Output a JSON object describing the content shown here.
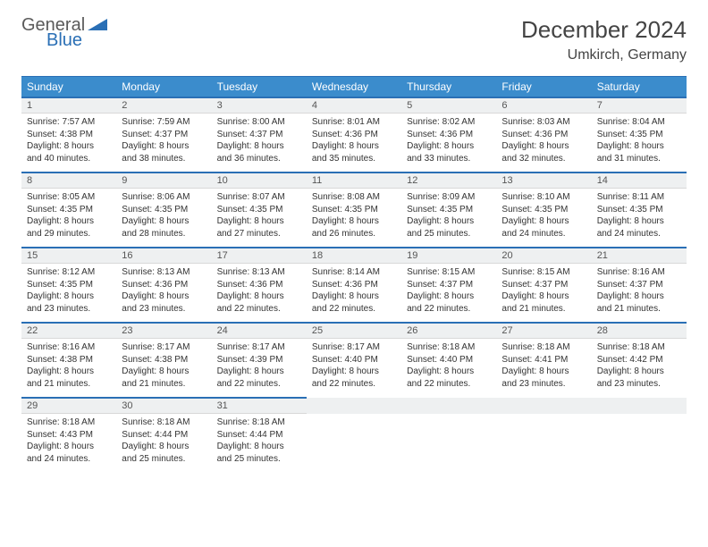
{
  "brand": {
    "part1": "General",
    "part2": "Blue"
  },
  "title": "December 2024",
  "location": "Umkirch, Germany",
  "colors": {
    "header_bg": "#3b8ccc",
    "header_border": "#2a6fb5",
    "daynum_bg": "#eef0f1",
    "text": "#333333",
    "brand_gray": "#5a5a5a",
    "brand_blue": "#2a6fb5"
  },
  "weekdays": [
    "Sunday",
    "Monday",
    "Tuesday",
    "Wednesday",
    "Thursday",
    "Friday",
    "Saturday"
  ],
  "weeks": [
    {
      "nums": [
        "1",
        "2",
        "3",
        "4",
        "5",
        "6",
        "7"
      ],
      "details": [
        {
          "sunrise": "Sunrise: 7:57 AM",
          "sunset": "Sunset: 4:38 PM",
          "day1": "Daylight: 8 hours",
          "day2": "and 40 minutes."
        },
        {
          "sunrise": "Sunrise: 7:59 AM",
          "sunset": "Sunset: 4:37 PM",
          "day1": "Daylight: 8 hours",
          "day2": "and 38 minutes."
        },
        {
          "sunrise": "Sunrise: 8:00 AM",
          "sunset": "Sunset: 4:37 PM",
          "day1": "Daylight: 8 hours",
          "day2": "and 36 minutes."
        },
        {
          "sunrise": "Sunrise: 8:01 AM",
          "sunset": "Sunset: 4:36 PM",
          "day1": "Daylight: 8 hours",
          "day2": "and 35 minutes."
        },
        {
          "sunrise": "Sunrise: 8:02 AM",
          "sunset": "Sunset: 4:36 PM",
          "day1": "Daylight: 8 hours",
          "day2": "and 33 minutes."
        },
        {
          "sunrise": "Sunrise: 8:03 AM",
          "sunset": "Sunset: 4:36 PM",
          "day1": "Daylight: 8 hours",
          "day2": "and 32 minutes."
        },
        {
          "sunrise": "Sunrise: 8:04 AM",
          "sunset": "Sunset: 4:35 PM",
          "day1": "Daylight: 8 hours",
          "day2": "and 31 minutes."
        }
      ]
    },
    {
      "nums": [
        "8",
        "9",
        "10",
        "11",
        "12",
        "13",
        "14"
      ],
      "details": [
        {
          "sunrise": "Sunrise: 8:05 AM",
          "sunset": "Sunset: 4:35 PM",
          "day1": "Daylight: 8 hours",
          "day2": "and 29 minutes."
        },
        {
          "sunrise": "Sunrise: 8:06 AM",
          "sunset": "Sunset: 4:35 PM",
          "day1": "Daylight: 8 hours",
          "day2": "and 28 minutes."
        },
        {
          "sunrise": "Sunrise: 8:07 AM",
          "sunset": "Sunset: 4:35 PM",
          "day1": "Daylight: 8 hours",
          "day2": "and 27 minutes."
        },
        {
          "sunrise": "Sunrise: 8:08 AM",
          "sunset": "Sunset: 4:35 PM",
          "day1": "Daylight: 8 hours",
          "day2": "and 26 minutes."
        },
        {
          "sunrise": "Sunrise: 8:09 AM",
          "sunset": "Sunset: 4:35 PM",
          "day1": "Daylight: 8 hours",
          "day2": "and 25 minutes."
        },
        {
          "sunrise": "Sunrise: 8:10 AM",
          "sunset": "Sunset: 4:35 PM",
          "day1": "Daylight: 8 hours",
          "day2": "and 24 minutes."
        },
        {
          "sunrise": "Sunrise: 8:11 AM",
          "sunset": "Sunset: 4:35 PM",
          "day1": "Daylight: 8 hours",
          "day2": "and 24 minutes."
        }
      ]
    },
    {
      "nums": [
        "15",
        "16",
        "17",
        "18",
        "19",
        "20",
        "21"
      ],
      "details": [
        {
          "sunrise": "Sunrise: 8:12 AM",
          "sunset": "Sunset: 4:35 PM",
          "day1": "Daylight: 8 hours",
          "day2": "and 23 minutes."
        },
        {
          "sunrise": "Sunrise: 8:13 AM",
          "sunset": "Sunset: 4:36 PM",
          "day1": "Daylight: 8 hours",
          "day2": "and 23 minutes."
        },
        {
          "sunrise": "Sunrise: 8:13 AM",
          "sunset": "Sunset: 4:36 PM",
          "day1": "Daylight: 8 hours",
          "day2": "and 22 minutes."
        },
        {
          "sunrise": "Sunrise: 8:14 AM",
          "sunset": "Sunset: 4:36 PM",
          "day1": "Daylight: 8 hours",
          "day2": "and 22 minutes."
        },
        {
          "sunrise": "Sunrise: 8:15 AM",
          "sunset": "Sunset: 4:37 PM",
          "day1": "Daylight: 8 hours",
          "day2": "and 22 minutes."
        },
        {
          "sunrise": "Sunrise: 8:15 AM",
          "sunset": "Sunset: 4:37 PM",
          "day1": "Daylight: 8 hours",
          "day2": "and 21 minutes."
        },
        {
          "sunrise": "Sunrise: 8:16 AM",
          "sunset": "Sunset: 4:37 PM",
          "day1": "Daylight: 8 hours",
          "day2": "and 21 minutes."
        }
      ]
    },
    {
      "nums": [
        "22",
        "23",
        "24",
        "25",
        "26",
        "27",
        "28"
      ],
      "details": [
        {
          "sunrise": "Sunrise: 8:16 AM",
          "sunset": "Sunset: 4:38 PM",
          "day1": "Daylight: 8 hours",
          "day2": "and 21 minutes."
        },
        {
          "sunrise": "Sunrise: 8:17 AM",
          "sunset": "Sunset: 4:38 PM",
          "day1": "Daylight: 8 hours",
          "day2": "and 21 minutes."
        },
        {
          "sunrise": "Sunrise: 8:17 AM",
          "sunset": "Sunset: 4:39 PM",
          "day1": "Daylight: 8 hours",
          "day2": "and 22 minutes."
        },
        {
          "sunrise": "Sunrise: 8:17 AM",
          "sunset": "Sunset: 4:40 PM",
          "day1": "Daylight: 8 hours",
          "day2": "and 22 minutes."
        },
        {
          "sunrise": "Sunrise: 8:18 AM",
          "sunset": "Sunset: 4:40 PM",
          "day1": "Daylight: 8 hours",
          "day2": "and 22 minutes."
        },
        {
          "sunrise": "Sunrise: 8:18 AM",
          "sunset": "Sunset: 4:41 PM",
          "day1": "Daylight: 8 hours",
          "day2": "and 23 minutes."
        },
        {
          "sunrise": "Sunrise: 8:18 AM",
          "sunset": "Sunset: 4:42 PM",
          "day1": "Daylight: 8 hours",
          "day2": "and 23 minutes."
        }
      ]
    },
    {
      "nums": [
        "29",
        "30",
        "31",
        "",
        "",
        "",
        ""
      ],
      "details": [
        {
          "sunrise": "Sunrise: 8:18 AM",
          "sunset": "Sunset: 4:43 PM",
          "day1": "Daylight: 8 hours",
          "day2": "and 24 minutes."
        },
        {
          "sunrise": "Sunrise: 8:18 AM",
          "sunset": "Sunset: 4:44 PM",
          "day1": "Daylight: 8 hours",
          "day2": "and 25 minutes."
        },
        {
          "sunrise": "Sunrise: 8:18 AM",
          "sunset": "Sunset: 4:44 PM",
          "day1": "Daylight: 8 hours",
          "day2": "and 25 minutes."
        },
        null,
        null,
        null,
        null
      ]
    }
  ]
}
